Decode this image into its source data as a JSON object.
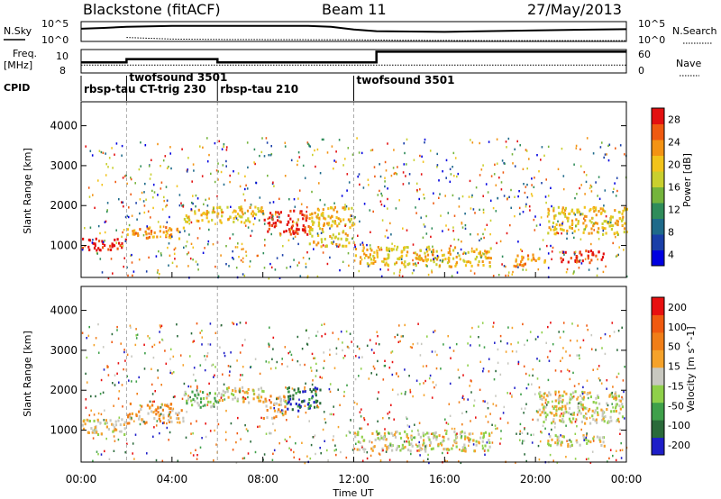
{
  "header": {
    "station": "Blackstone (fitACF)",
    "beam": "Beam 11",
    "date": "27/May/2013"
  },
  "chart_data": [
    {
      "type": "line",
      "name_panel": "noise",
      "ylabel_left": "N.Sky",
      "ylabel_right": "N.Search",
      "yticks_left": [
        "10^5",
        "10^0"
      ],
      "yticks_right": [
        "10^5",
        "10^0"
      ],
      "xlim": [
        0,
        24
      ],
      "series": [
        {
          "values_x": [
            0,
            1,
            2,
            4,
            6,
            8,
            10,
            11,
            12,
            13,
            16,
            20,
            24
          ],
          "values": [
            3.2,
            3.4,
            3.7,
            3.9,
            3.9,
            3.9,
            3.9,
            3.7,
            3.0,
            2.6,
            2.4,
            2.8,
            3.1
          ]
        },
        {
          "values_x": [
            2,
            3,
            4,
            6,
            12,
            14,
            18,
            22,
            24
          ],
          "values": [
            1.0,
            0.8,
            0.6,
            0.5,
            0.4,
            0.3,
            0.2,
            0.2,
            0.2
          ]
        }
      ]
    },
    {
      "type": "line",
      "name_panel": "frequency",
      "ylabel_left": "Freq. [MHz]",
      "ylabel_right": "Nave",
      "yticks_left": [
        "10",
        "8"
      ],
      "yticks_right": [
        "60",
        "0"
      ],
      "xlim": [
        0,
        24
      ],
      "series": [
        {
          "values_x": [
            0,
            2,
            6,
            12,
            13,
            24
          ],
          "values": [
            9.0,
            9.3,
            9.0,
            9.0,
            10.0,
            10.0
          ]
        },
        {
          "values_x": [
            0,
            13,
            24
          ],
          "values": [
            20,
            20,
            20
          ]
        }
      ]
    },
    {
      "type": "table",
      "label": "CPID",
      "segments": [
        {
          "start": 0,
          "end": 2,
          "text": "rbsp-tau CT-trig 230"
        },
        {
          "start": 2,
          "end": 6,
          "text": "twofsound 3501"
        },
        {
          "start": 6,
          "end": 12,
          "text": "rbsp-tau 210"
        },
        {
          "start": 12,
          "end": 24,
          "text": "twofsound 3501"
        }
      ]
    },
    {
      "type": "heatmap",
      "name_panel": "power",
      "ylabel": "Slant Range [km]",
      "xlim": [
        0,
        24
      ],
      "ylim": [
        200,
        4600
      ],
      "yticks": [
        1000,
        2000,
        3000,
        4000
      ],
      "colorbar_label": "Power [dB]",
      "colorbar_ticks": [
        "28",
        "24",
        "20",
        "16",
        "12",
        "8",
        "4"
      ],
      "palette": [
        "#0000e0",
        "#1a3fa8",
        "#1f6a8a",
        "#2f8c5a",
        "#74b43c",
        "#c9cf2e",
        "#f2c31b",
        "#f39314",
        "#ef5a10",
        "#e31010"
      ],
      "regions": [
        {
          "t0": 0.0,
          "t1": 2.0,
          "r0": 900,
          "r1": 1200,
          "level": 9
        },
        {
          "t0": 2.0,
          "t1": 4.5,
          "r0": 1200,
          "r1": 1500,
          "level": 7
        },
        {
          "t0": 4.5,
          "t1": 8.0,
          "r0": 1600,
          "r1": 2000,
          "level": 6
        },
        {
          "t0": 8.0,
          "t1": 10.0,
          "r0": 1300,
          "r1": 1900,
          "level": 9
        },
        {
          "t0": 10.0,
          "t1": 12.0,
          "r0": 1000,
          "r1": 2000,
          "level": 6
        },
        {
          "t0": 12.0,
          "t1": 18.0,
          "r0": 500,
          "r1": 1000,
          "level": 6
        },
        {
          "t0": 19.0,
          "t1": 20.5,
          "r0": 500,
          "r1": 800,
          "level": 7
        },
        {
          "t0": 20.5,
          "t1": 24.0,
          "r0": 1300,
          "r1": 2000,
          "level": 6
        },
        {
          "t0": 21.0,
          "t1": 23.0,
          "r0": 600,
          "r1": 900,
          "level": 9
        }
      ]
    },
    {
      "type": "heatmap",
      "name_panel": "velocity",
      "ylabel": "Slant Range [km]",
      "xlabel": "Time UT",
      "xticks": [
        "00:00",
        "04:00",
        "08:00",
        "12:00",
        "16:00",
        "20:00",
        "00:00"
      ],
      "xlim": [
        0,
        24
      ],
      "ylim": [
        200,
        4600
      ],
      "yticks": [
        1000,
        2000,
        3000,
        4000
      ],
      "colorbar_label": "Velocity [m s^-1]",
      "colorbar_ticks": [
        "200",
        "100",
        "50",
        "15",
        "-15",
        "-50",
        "-100",
        "-200"
      ],
      "palette": [
        "#1e1ec8",
        "#2a6a3a",
        "#3fa04a",
        "#8fd04a",
        "#c8c8c0",
        "#f5a22a",
        "#f07e18",
        "#f05a10",
        "#e81010"
      ],
      "regions": [
        {
          "t0": 0.0,
          "t1": 2.0,
          "r0": 900,
          "r1": 1300,
          "level": 4
        },
        {
          "t0": 2.0,
          "t1": 4.5,
          "r0": 1200,
          "r1": 1700,
          "level": 5
        },
        {
          "t0": 4.5,
          "t1": 6.0,
          "r0": 1600,
          "r1": 2000,
          "level": 3
        },
        {
          "t0": 6.0,
          "t1": 8.0,
          "r0": 1700,
          "r1": 2100,
          "level": 4
        },
        {
          "t0": 8.0,
          "t1": 9.0,
          "r0": 1300,
          "r1": 1900,
          "level": 5
        },
        {
          "t0": 9.0,
          "t1": 10.5,
          "r0": 1500,
          "r1": 2100,
          "level": 1
        },
        {
          "t0": 12.0,
          "t1": 18.0,
          "r0": 500,
          "r1": 1000,
          "level": 4
        },
        {
          "t0": 20.0,
          "t1": 24.0,
          "r0": 1200,
          "r1": 2000,
          "level": 4
        },
        {
          "t0": 20.5,
          "t1": 23.0,
          "r0": 600,
          "r1": 900,
          "level": 4
        }
      ]
    }
  ]
}
